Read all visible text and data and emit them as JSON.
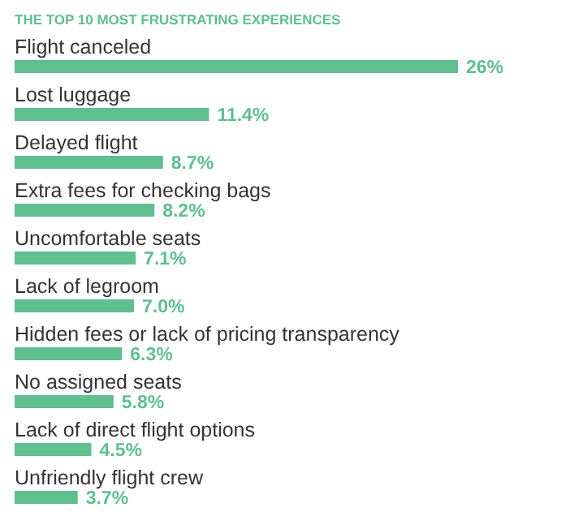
{
  "chart_data": {
    "type": "bar",
    "orientation": "horizontal",
    "title": "THE TOP 10 MOST FRUSTRATING EXPERIENCES",
    "categories": [
      "Flight canceled",
      "Lost luggage",
      "Delayed flight",
      "Extra fees for checking bags",
      "Uncomfortable seats",
      "Lack of legroom",
      "Hidden fees or lack of pricing transparency",
      "No assigned seats",
      "Lack of direct flight options",
      "Unfriendly flight crew"
    ],
    "values": [
      26,
      11.4,
      8.7,
      8.2,
      7.1,
      7.0,
      6.3,
      5.8,
      4.5,
      3.7
    ],
    "value_labels": [
      "26%",
      "11.4%",
      "8.7%",
      "8.2%",
      "7.1%",
      "7.0%",
      "6.3%",
      "5.8%",
      "4.5%",
      "3.7%"
    ],
    "color": "#5fbf8f"
  }
}
